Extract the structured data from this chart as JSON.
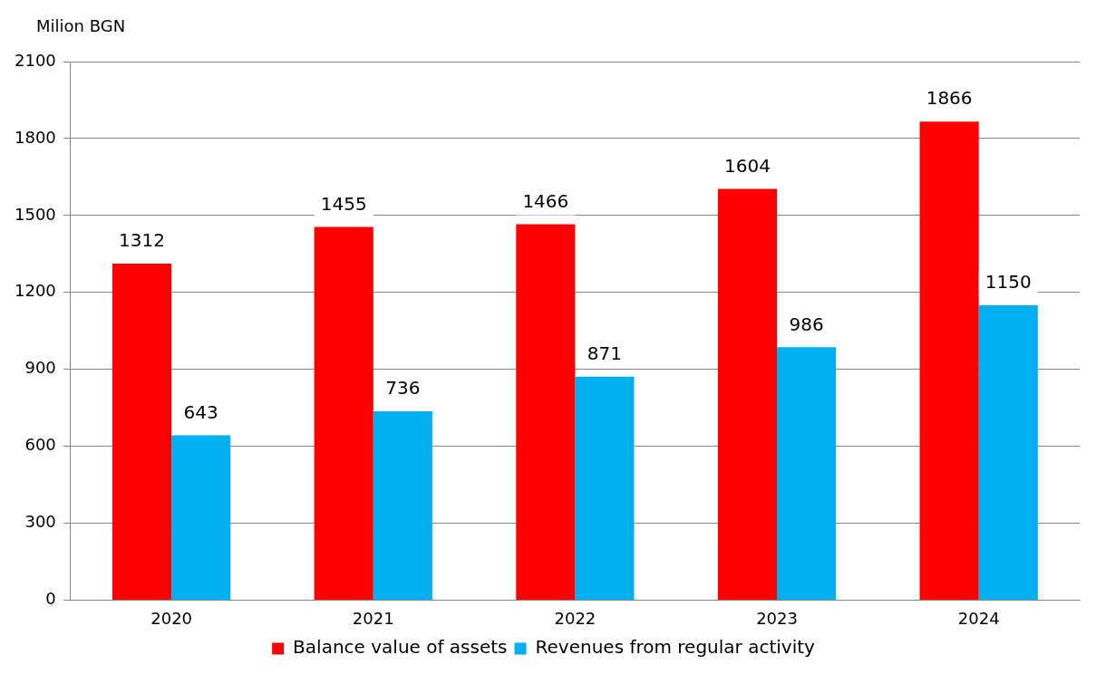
{
  "chart_data": {
    "type": "bar",
    "ylabel": "Milion BGN",
    "categories": [
      "2020",
      "2021",
      "2022",
      "2023",
      "2024"
    ],
    "series": [
      {
        "name": "Balance value of assets",
        "color": "#ff0000",
        "values": [
          1312,
          1455,
          1466,
          1604,
          1866
        ]
      },
      {
        "name": "Revenues from regular activity",
        "color": "#00b0f0",
        "values": [
          643,
          736,
          871,
          986,
          1150
        ]
      }
    ],
    "ylim": [
      0,
      2100
    ],
    "yticks": [
      0,
      300,
      600,
      900,
      1200,
      1500,
      1800,
      2100
    ],
    "grid": "y",
    "legend": "bottom",
    "data_labels": true
  }
}
